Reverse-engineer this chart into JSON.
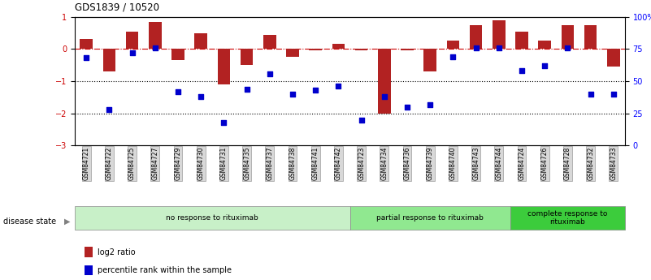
{
  "title": "GDS1839 / 10520",
  "samples": [
    "GSM84721",
    "GSM84722",
    "GSM84725",
    "GSM84727",
    "GSM84729",
    "GSM84730",
    "GSM84731",
    "GSM84735",
    "GSM84737",
    "GSM84738",
    "GSM84741",
    "GSM84742",
    "GSM84723",
    "GSM84734",
    "GSM84736",
    "GSM84739",
    "GSM84740",
    "GSM84743",
    "GSM84744",
    "GSM84724",
    "GSM84726",
    "GSM84728",
    "GSM84732",
    "GSM84733"
  ],
  "log2_ratio": [
    0.3,
    -0.7,
    0.55,
    0.85,
    -0.35,
    0.5,
    -1.1,
    -0.5,
    0.45,
    -0.25,
    -0.05,
    0.15,
    -0.05,
    -2.0,
    -0.05,
    -0.7,
    0.25,
    0.75,
    0.9,
    0.55,
    0.25,
    0.75,
    0.75,
    -0.55
  ],
  "percentile_rank_pct": [
    68,
    28,
    72,
    76,
    42,
    38,
    18,
    44,
    56,
    40,
    43,
    46,
    20,
    38,
    30,
    32,
    69,
    76,
    76,
    58,
    62,
    76,
    40,
    40
  ],
  "group_boundaries": [
    0,
    12,
    19,
    24
  ],
  "group_labels": [
    "no response to rituximab",
    "partial response to rituximab",
    "complete response to\nrituximab"
  ],
  "group_colors": [
    "#c8f0c8",
    "#90e890",
    "#3ccc3c"
  ],
  "bar_color": "#b22222",
  "dot_color": "#0000cc",
  "ylim": [
    -3,
    1
  ],
  "yticks_left": [
    -3,
    -2,
    -1,
    0,
    1
  ],
  "yticks_right_pct": [
    0,
    25,
    50,
    75,
    100
  ],
  "yticks_right_labels": [
    "0",
    "25",
    "50",
    "75",
    "100%"
  ],
  "hline_zero_color": "#cc0000",
  "hline_dotted_vals": [
    -1,
    -2
  ],
  "legend_labels": [
    "log2 ratio",
    "percentile rank within the sample"
  ],
  "bar_width": 0.55
}
